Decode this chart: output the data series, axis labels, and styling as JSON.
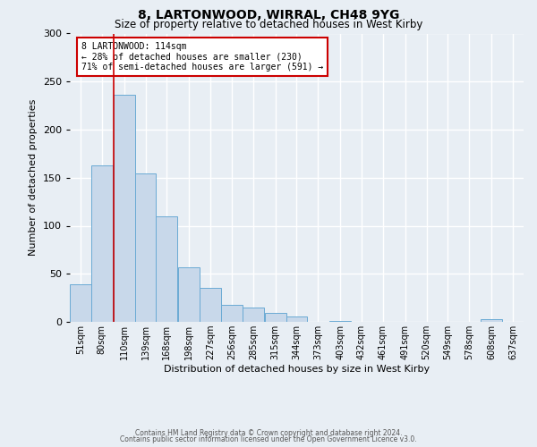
{
  "title_line1": "8, LARTONWOOD, WIRRAL, CH48 9YG",
  "title_line2": "Size of property relative to detached houses in West Kirby",
  "xlabel": "Distribution of detached houses by size in West Kirby",
  "ylabel": "Number of detached properties",
  "bin_labels": [
    "51sqm",
    "80sqm",
    "110sqm",
    "139sqm",
    "168sqm",
    "198sqm",
    "227sqm",
    "256sqm",
    "285sqm",
    "315sqm",
    "344sqm",
    "373sqm",
    "403sqm",
    "432sqm",
    "461sqm",
    "491sqm",
    "520sqm",
    "549sqm",
    "578sqm",
    "608sqm",
    "637sqm"
  ],
  "bar_values": [
    39,
    163,
    236,
    154,
    110,
    57,
    35,
    18,
    15,
    9,
    6,
    0,
    1,
    0,
    0,
    0,
    0,
    0,
    0,
    3,
    0
  ],
  "bar_color": "#c8d8ea",
  "bar_edge_color": "#6aaad4",
  "background_color": "#e8eef4",
  "grid_color": "#ffffff",
  "property_line_x": 110,
  "property_line_color": "#cc0000",
  "ylim": [
    0,
    300
  ],
  "yticks": [
    0,
    50,
    100,
    150,
    200,
    250,
    300
  ],
  "annotation_text_line1": "8 LARTONWOOD: 114sqm",
  "annotation_text_line2": "← 28% of detached houses are smaller (230)",
  "annotation_text_line3": "71% of semi-detached houses are larger (591) →",
  "annotation_box_color": "#ffffff",
  "annotation_border_color": "#cc0000",
  "footer_line1": "Contains HM Land Registry data © Crown copyright and database right 2024.",
  "footer_line2": "Contains public sector information licensed under the Open Government Licence v3.0.",
  "bin_width": 29
}
